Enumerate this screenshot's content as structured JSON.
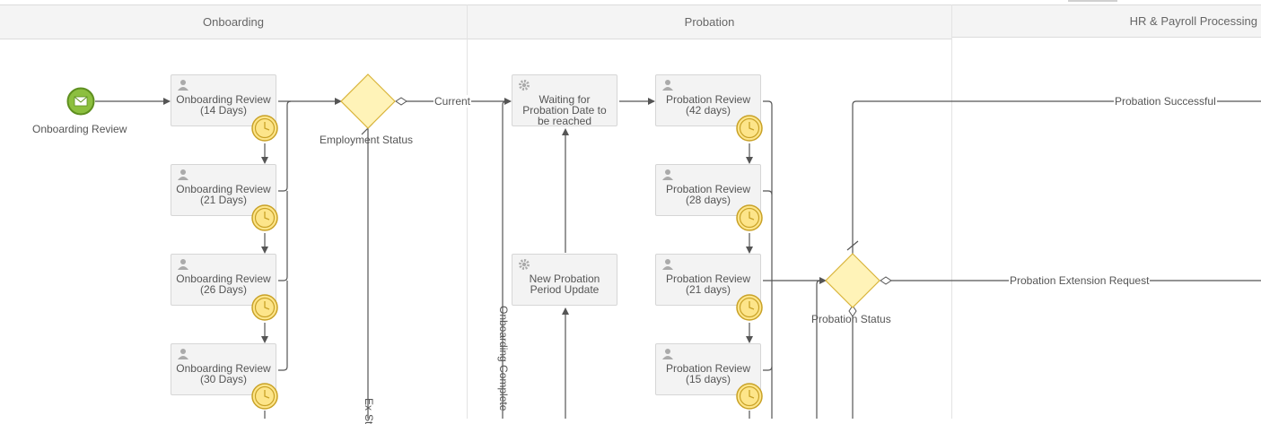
{
  "lanes": [
    {
      "id": "onboarding",
      "label": "Onboarding"
    },
    {
      "id": "probation",
      "label": "Probation"
    },
    {
      "id": "hr",
      "label": "HR & Payroll Processing"
    }
  ],
  "start_event": {
    "label": "Onboarding Review",
    "icon": "envelope-icon"
  },
  "onboarding_tasks": [
    {
      "line1": "Onboarding Review",
      "line2": "(14 Days)"
    },
    {
      "line1": "Onboarding Review",
      "line2": "(21 Days)"
    },
    {
      "line1": "Onboarding Review",
      "line2": "(26 Days)"
    },
    {
      "line1": "Onboarding Review",
      "line2": "(30 Days)"
    }
  ],
  "gateways": {
    "employment_status": "Employment Status",
    "probation_status": "Probation Status"
  },
  "probation_service_tasks": [
    {
      "line1": "Waiting for",
      "line2": "Probation Date to",
      "line3": "be reached"
    },
    {
      "line1": "New Probation",
      "line2": "Period Update"
    }
  ],
  "probation_tasks": [
    {
      "line1": "Probation Review",
      "line2": "(42 days)"
    },
    {
      "line1": "Probation Review",
      "line2": "(28 days)"
    },
    {
      "line1": "Probation Review",
      "line2": "(21 days)"
    },
    {
      "line1": "Probation Review",
      "line2": "(15 days)"
    }
  ],
  "flow_labels": {
    "current": "Current",
    "ex": "Ex-St",
    "onboarding_complete": "Onboarding Complete",
    "probation_successful": "Probation Successful",
    "probation_extension": "Probation Extension Request"
  },
  "colors": {
    "start_fill": "#8cbf3f",
    "start_stroke": "#5e8f1f",
    "gateway_fill": "#fff3b8",
    "gateway_stroke": "#d9b43a",
    "timer_fill": "#fde58a",
    "timer_stroke": "#c9a227",
    "line": "#555555"
  }
}
